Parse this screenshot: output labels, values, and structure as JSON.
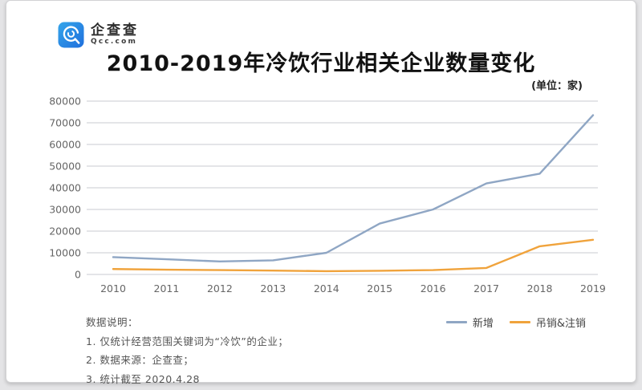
{
  "header": {
    "logo": {
      "brand": "企查查",
      "domain": "Qcc.com",
      "color": "#2b7fe3"
    },
    "title": "2010-2019年冷饮行业相关企业数量变化",
    "unit": "(单位：家)"
  },
  "chart_data": {
    "type": "line",
    "x": [
      "2010",
      "2011",
      "2012",
      "2013",
      "2014",
      "2015",
      "2016",
      "2017",
      "2018",
      "2019"
    ],
    "series": [
      {
        "name": "新增",
        "color": "#8fa6c4",
        "values": [
          8000,
          7000,
          6000,
          6500,
          10000,
          23500,
          30000,
          42000,
          46500,
          73500
        ]
      },
      {
        "name": "吊销&注销",
        "color": "#f0a33c",
        "values": [
          2500,
          2200,
          2000,
          1800,
          1500,
          1700,
          2000,
          3000,
          13000,
          16000
        ]
      }
    ],
    "ylim": [
      0,
      80000
    ],
    "y_tick_step": 10000,
    "y_tick_labels": [
      "0",
      "10000",
      "20000",
      "30000",
      "40000",
      "50000",
      "60000",
      "70000",
      "80000"
    ],
    "grid": true,
    "grid_color": "#c9cbd0",
    "tick_color": "#666666",
    "legend_position": "bottom-right"
  },
  "footnotes": {
    "heading": "数据说明：",
    "items": [
      "1. 仅统计经营范围关键词为“冷饮”的企业；",
      "2. 数据来源：企查查；",
      "3. 统计截至 2020.4.28"
    ]
  }
}
